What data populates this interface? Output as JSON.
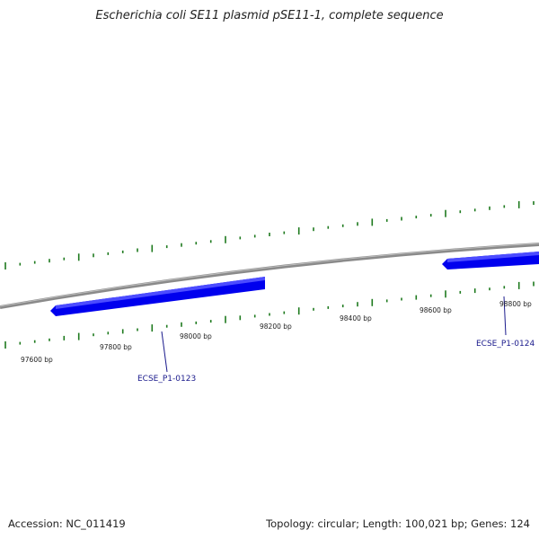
{
  "title": "Escherichia coli SE11 plasmid pSE11-1, complete sequence",
  "footer": {
    "accession": "Accession: NC_011419",
    "summary": "Topology: circular; Length: 100,021 bp; Genes: 124"
  },
  "tick_labels": [
    "97600 bp",
    "97800 bp",
    "98000 bp",
    "98200 bp",
    "98400 bp",
    "98600 bp",
    "98800 bp"
  ],
  "genes": [
    {
      "label": "ECSE_P1-0123",
      "color": "#0000ee"
    },
    {
      "label": "ECSE_P1-0124",
      "color": "#0000ee"
    }
  ],
  "colors": {
    "backbone": "#8a8a8a",
    "gene": "#0000ee",
    "gc_ticks": "#1e7a1e"
  }
}
